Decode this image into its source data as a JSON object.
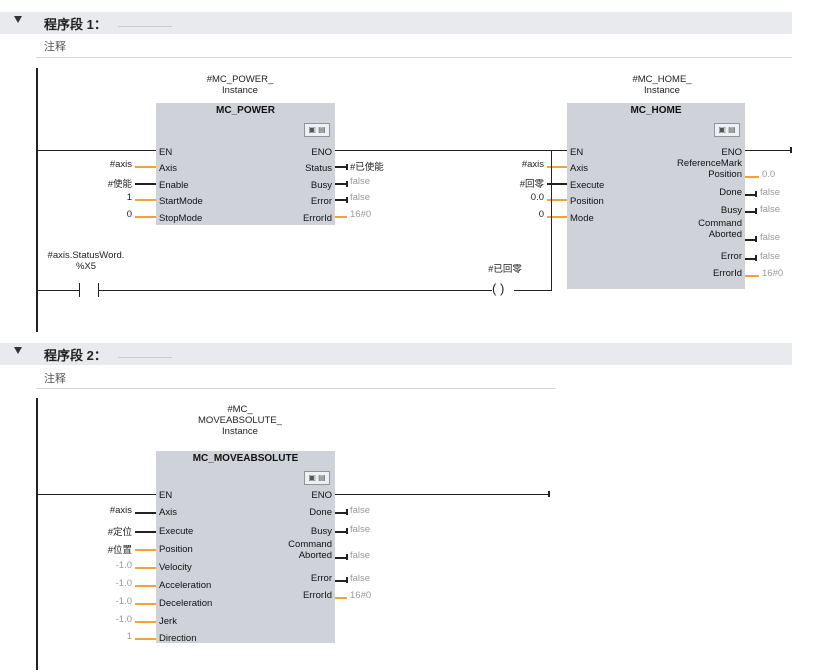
{
  "segments": [
    {
      "title": "程序段 1：",
      "comment": "注释"
    },
    {
      "title": "程序段 2：",
      "comment": "注释"
    }
  ],
  "network1": {
    "power": {
      "instance": "#MC_POWER_\nInstance",
      "name": "MC_POWER",
      "en": "EN",
      "eno": "ENO",
      "inputs": [
        {
          "label": "Axis",
          "value": "#axis"
        },
        {
          "label": "Enable",
          "value": "#使能"
        },
        {
          "label": "StartMode",
          "value": "1"
        },
        {
          "label": "StopMode",
          "value": "0"
        }
      ],
      "outputs": [
        {
          "label": "Status",
          "value": "#已使能"
        },
        {
          "label": "Busy",
          "value": "false"
        },
        {
          "label": "Error",
          "value": "false"
        },
        {
          "label": "ErrorId",
          "value": "16#0"
        }
      ]
    },
    "home": {
      "instance": "#MC_HOME_\nInstance",
      "name": "MC_HOME",
      "en": "EN",
      "eno": "ENO",
      "inputs": [
        {
          "label": "Axis",
          "value": "#axis"
        },
        {
          "label": "Execute",
          "value": "#回零"
        },
        {
          "label": "Position",
          "value": "0.0"
        },
        {
          "label": "Mode",
          "value": "0"
        }
      ],
      "outputs": [
        {
          "label": "ReferenceMark\nPosition",
          "value": "0.0"
        },
        {
          "label": "Done",
          "value": "false"
        },
        {
          "label": "Busy",
          "value": "false"
        },
        {
          "label": "Command\nAborted",
          "value": "false"
        },
        {
          "label": "Error",
          "value": "false"
        },
        {
          "label": "ErrorId",
          "value": "16#0"
        }
      ]
    },
    "contact_label": "#axis.StatusWord.\n%X5",
    "coil_label": "#已回零",
    "coil_symbol": "( )"
  },
  "network2": {
    "move": {
      "instance": "#MC_\nMOVEABSOLUTE_\nInstance",
      "name": "MC_MOVEABSOLUTE",
      "en": "EN",
      "eno": "ENO",
      "inputs": [
        {
          "label": "Axis",
          "value": "#axis"
        },
        {
          "label": "Execute",
          "value": "#定位"
        },
        {
          "label": "Position",
          "value": "#位置"
        },
        {
          "label": "Velocity",
          "value": "-1.0"
        },
        {
          "label": "Acceleration",
          "value": "-1.0"
        },
        {
          "label": "Deceleration",
          "value": "-1.0"
        },
        {
          "label": "Jerk",
          "value": "-1.0"
        },
        {
          "label": "Direction",
          "value": "1"
        }
      ],
      "outputs": [
        {
          "label": "Done",
          "value": "false"
        },
        {
          "label": "Busy",
          "value": "false"
        },
        {
          "label": "Command\nAborted",
          "value": "false"
        },
        {
          "label": "Error",
          "value": "false"
        },
        {
          "label": "ErrorId",
          "value": "16#0"
        }
      ]
    }
  }
}
